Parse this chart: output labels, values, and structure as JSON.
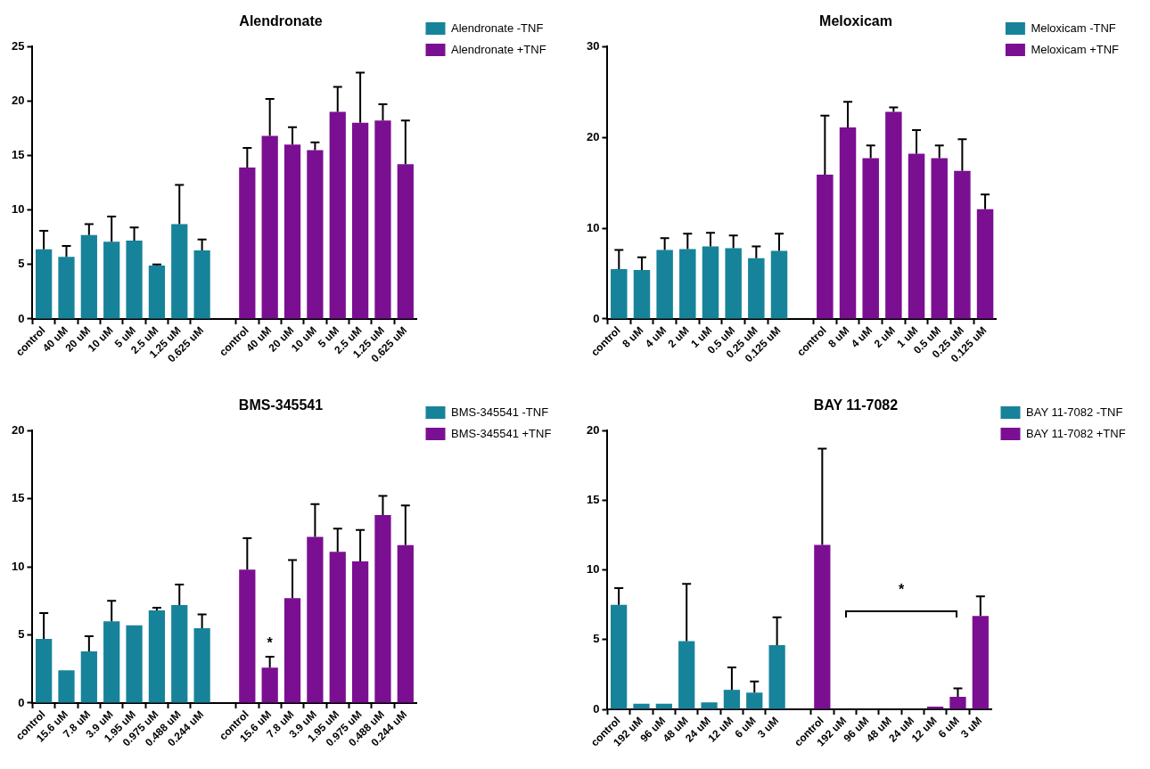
{
  "chart_data": [
    {
      "type": "bar",
      "title": "Alendronate",
      "categories": [
        "control",
        "40 uM",
        "20 uM",
        "10 uM",
        "5 uM",
        "2.5 uM",
        "1.25 uM",
        "0.625 uM",
        null,
        "control",
        "40 uM",
        "20 uM",
        "10 uM",
        "5 uM",
        "2.5 uM",
        "1.25 uM",
        "0.625 uM"
      ],
      "ylim": [
        0,
        25
      ],
      "yticks": [
        0,
        5,
        10,
        15,
        20,
        25
      ],
      "grid": false,
      "legend": "right",
      "series": [
        {
          "name": "Alendronate -TNF",
          "color": "#17839a",
          "values": [
            6.4,
            5.7,
            7.7,
            7.1,
            7.2,
            4.9,
            8.7,
            6.3,
            null,
            null,
            null,
            null,
            null,
            null,
            null,
            null,
            null
          ],
          "errors": [
            [
              6.4,
              8.1
            ],
            [
              5.7,
              6.7
            ],
            [
              7.7,
              8.7
            ],
            [
              7.1,
              9.4
            ],
            [
              7.2,
              8.4
            ],
            [
              4.9,
              5.0
            ],
            [
              8.7,
              12.3
            ],
            [
              6.3,
              7.3
            ],
            null,
            null,
            null,
            null,
            null,
            null,
            null,
            null,
            null
          ]
        },
        {
          "name": "Alendronate +TNF",
          "color": "#7b0f92",
          "values": [
            null,
            null,
            null,
            null,
            null,
            null,
            null,
            null,
            null,
            13.9,
            16.8,
            16.0,
            15.5,
            19.0,
            18.0,
            18.2,
            14.2
          ],
          "errors": [
            null,
            null,
            null,
            null,
            null,
            null,
            null,
            null,
            null,
            [
              13.9,
              15.7
            ],
            [
              16.8,
              20.2
            ],
            [
              16.0,
              17.6
            ],
            [
              15.5,
              16.2
            ],
            [
              19.0,
              21.3
            ],
            [
              18.0,
              22.6
            ],
            [
              18.2,
              19.7
            ],
            [
              14.2,
              18.2
            ]
          ]
        }
      ]
    },
    {
      "type": "bar",
      "title": "Meloxicam",
      "categories": [
        "control",
        "8 uM",
        "4 uM",
        "2 uM",
        "1 uM",
        "0.5 uM",
        "0.25 uM",
        "0.125 uM",
        null,
        "control",
        "8 uM",
        "4 uM",
        "2 uM",
        "1 uM",
        "0.5 uM",
        "0.25 uM",
        "0.125 uM"
      ],
      "ylim": [
        0,
        30
      ],
      "yticks": [
        0,
        10,
        20,
        30
      ],
      "grid": false,
      "legend": "right",
      "series": [
        {
          "name": "Meloxicam -TNF",
          "color": "#17839a",
          "values": [
            5.5,
            5.4,
            7.6,
            7.7,
            8.0,
            7.8,
            6.7,
            7.5,
            null,
            null,
            null,
            null,
            null,
            null,
            null,
            null,
            null
          ],
          "errors": [
            [
              5.5,
              7.6
            ],
            [
              5.4,
              6.8
            ],
            [
              7.6,
              8.9
            ],
            [
              7.7,
              9.4
            ],
            [
              8.0,
              9.5
            ],
            [
              7.8,
              9.2
            ],
            [
              6.7,
              8.0
            ],
            [
              7.5,
              9.4
            ],
            null,
            null,
            null,
            null,
            null,
            null,
            null,
            null,
            null
          ]
        },
        {
          "name": "Meloxicam +TNF",
          "color": "#7b0f92",
          "values": [
            null,
            null,
            null,
            null,
            null,
            null,
            null,
            null,
            null,
            15.9,
            21.1,
            17.7,
            22.8,
            18.2,
            17.7,
            16.3,
            12.1
          ],
          "errors": [
            null,
            null,
            null,
            null,
            null,
            null,
            null,
            null,
            null,
            [
              15.9,
              22.4
            ],
            [
              21.1,
              23.9
            ],
            [
              17.7,
              19.1
            ],
            [
              22.8,
              23.3
            ],
            [
              18.2,
              20.8
            ],
            [
              17.7,
              19.1
            ],
            [
              16.3,
              19.8
            ],
            [
              12.1,
              13.7
            ]
          ]
        }
      ]
    },
    {
      "type": "bar",
      "title": "BMS-345541",
      "categories": [
        "control",
        "15.6 uM",
        "7.8 uM",
        "3.9 uM",
        "1.95 uM",
        "0.975 uM",
        "0.488 uM",
        "0.244 uM",
        null,
        "control",
        "15.6 uM",
        "7.8 uM",
        "3.9 uM",
        "1.95 uM",
        "0.975 uM",
        "0.488 uM",
        "0.244 uM"
      ],
      "ylim": [
        0,
        20
      ],
      "yticks": [
        0,
        5,
        10,
        15,
        20
      ],
      "grid": false,
      "legend": "right",
      "annotations": [
        "*"
      ],
      "series": [
        {
          "name": "BMS-345541 -TNF",
          "color": "#17839a",
          "values": [
            4.7,
            2.4,
            3.8,
            6.0,
            5.7,
            6.8,
            7.2,
            5.5,
            null,
            null,
            null,
            null,
            null,
            null,
            null,
            null,
            null
          ],
          "errors": [
            [
              4.7,
              6.6
            ],
            null,
            [
              3.8,
              4.9
            ],
            [
              6.0,
              7.5
            ],
            null,
            [
              6.8,
              7.0
            ],
            [
              7.2,
              8.7
            ],
            [
              5.5,
              6.5
            ],
            null,
            null,
            null,
            null,
            null,
            null,
            null,
            null,
            null
          ]
        },
        {
          "name": "BMS-345541 +TNF",
          "color": "#7b0f92",
          "values": [
            null,
            null,
            null,
            null,
            null,
            null,
            null,
            null,
            null,
            9.8,
            2.6,
            7.7,
            12.2,
            11.1,
            10.4,
            13.8,
            11.6
          ],
          "errors": [
            null,
            null,
            null,
            null,
            null,
            null,
            null,
            null,
            null,
            [
              9.8,
              12.1
            ],
            [
              2.6,
              3.4
            ],
            [
              7.7,
              10.5
            ],
            [
              12.2,
              14.6
            ],
            [
              11.1,
              12.8
            ],
            [
              10.4,
              12.7
            ],
            [
              13.8,
              15.2
            ],
            [
              11.6,
              14.5
            ]
          ]
        }
      ]
    },
    {
      "type": "bar",
      "title": "BAY 11-7082",
      "categories": [
        "control",
        "192 uM",
        "96 uM",
        "48 uM",
        "24 uM",
        "12 uM",
        "6 uM",
        "3 uM",
        null,
        "control",
        "192 uM",
        "96 uM",
        "48 uM",
        "24 uM",
        "12 uM",
        "6 uM",
        "3 uM"
      ],
      "ylim": [
        0,
        20
      ],
      "yticks": [
        0,
        5,
        10,
        15,
        20
      ],
      "grid": false,
      "legend": "right",
      "annotations": [
        "*"
      ],
      "series": [
        {
          "name": "BAY 11-7082 -TNF",
          "color": "#17839a",
          "values": [
            7.5,
            0.4,
            0.4,
            4.9,
            0.5,
            1.4,
            1.2,
            4.6,
            null,
            null,
            null,
            null,
            null,
            null,
            null,
            null,
            null
          ],
          "errors": [
            [
              7.5,
              8.7
            ],
            null,
            null,
            [
              4.9,
              9.0
            ],
            null,
            [
              1.4,
              3.0
            ],
            [
              1.2,
              2.0
            ],
            [
              4.6,
              6.6
            ],
            null,
            null,
            null,
            null,
            null,
            null,
            null,
            null,
            null
          ]
        },
        {
          "name": "BAY 11-7082 +TNF",
          "color": "#7b0f92",
          "values": [
            null,
            null,
            null,
            null,
            null,
            null,
            null,
            null,
            null,
            11.8,
            0,
            0,
            0,
            0,
            0.2,
            0.9,
            6.7
          ],
          "errors": [
            null,
            null,
            null,
            null,
            null,
            null,
            null,
            null,
            null,
            [
              11.8,
              18.7
            ],
            null,
            null,
            null,
            null,
            null,
            [
              0.9,
              1.5
            ],
            [
              6.7,
              8.1
            ]
          ]
        }
      ]
    }
  ]
}
